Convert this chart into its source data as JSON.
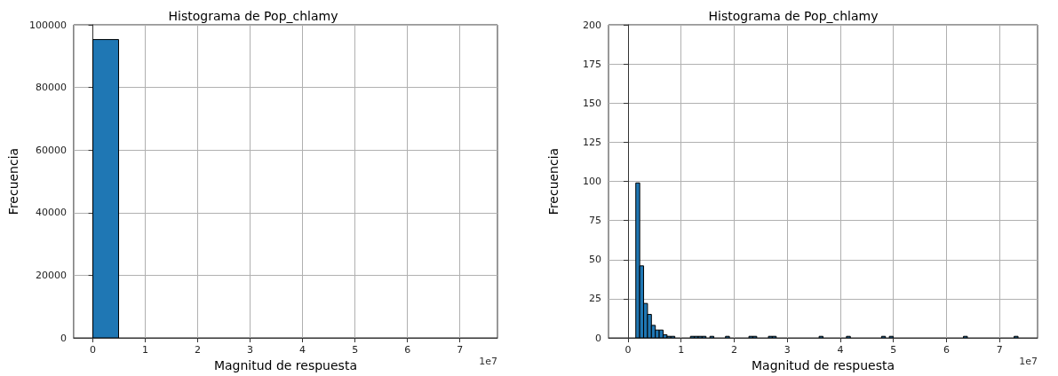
{
  "chart_data": [
    {
      "type": "histogram",
      "title": "Histograma de Pop_chlamy",
      "xlabel": "Magnitud de respuesta",
      "ylabel": "Frecuencia",
      "color": "#1f77b4",
      "bins": [
        0,
        0.49,
        0.98,
        1.47,
        1.96,
        2.45,
        2.94,
        3.43,
        3.92,
        4.41,
        4.9,
        5.39,
        5.88,
        6.37,
        6.86,
        7.35
      ],
      "values": [
        95300,
        0,
        0,
        0,
        0,
        0,
        0,
        0,
        0,
        0,
        0,
        0,
        0,
        0,
        0
      ],
      "xlim": [
        -0.3675,
        7.7175
      ],
      "xticks": [
        0,
        1,
        2,
        3,
        4,
        5,
        6,
        7
      ],
      "ylim": [
        0,
        100000
      ],
      "yticks": [
        0,
        20000,
        40000,
        60000,
        80000,
        100000
      ],
      "grid": true,
      "annotations": [
        "1e7"
      ]
    },
    {
      "type": "histogram",
      "title": "Histograma de Pop_chlamy",
      "xlabel": "Magnitud de respuesta",
      "ylabel": "Frecuencia",
      "color": "#1f77b4",
      "bins": [
        0,
        0.0735,
        0.147,
        0.2205,
        0.294,
        0.3675,
        0.441,
        0.5145,
        0.588,
        0.6615,
        0.735,
        0.8085,
        0.882,
        0.9555,
        1.029,
        1.1025,
        1.176,
        1.2495,
        1.323,
        1.3965,
        1.47,
        1.5435,
        1.617,
        1.6905,
        1.764,
        1.8375,
        1.911,
        1.9845,
        2.058,
        2.1315,
        2.205,
        2.2785,
        2.352,
        2.4255,
        2.499,
        2.5725,
        2.646,
        2.7195,
        2.793,
        2.8665,
        2.94,
        3.0135,
        3.087,
        3.1605,
        3.234,
        3.3075,
        3.381,
        3.4545,
        3.528,
        3.6015,
        3.675,
        3.7485,
        3.822,
        3.8955,
        3.969,
        4.0425,
        4.116,
        4.1895,
        4.263,
        4.3365,
        4.41,
        4.4835,
        4.557,
        4.6305,
        4.704,
        4.7775,
        4.851,
        4.9245,
        4.998,
        5.0715,
        5.145,
        5.2185,
        5.292,
        5.3655,
        5.439,
        5.5125,
        5.586,
        5.6595,
        5.733,
        5.8065,
        5.88,
        5.9535,
        6.027,
        6.1005,
        6.174,
        6.2475,
        6.321,
        6.3945,
        6.468,
        6.5415,
        6.615,
        6.6885,
        6.762,
        6.8355,
        6.909,
        6.9825,
        7.056,
        7.1295,
        7.203,
        7.2765,
        7.35
      ],
      "values": [
        null,
        null,
        99,
        46,
        22,
        15,
        8,
        5,
        5,
        2,
        1,
        1,
        0,
        0,
        0,
        0,
        1,
        1,
        1,
        1,
        0,
        1,
        0,
        0,
        0,
        1,
        0,
        0,
        0,
        0,
        0,
        1,
        1,
        0,
        0,
        0,
        1,
        1,
        0,
        0,
        0,
        0,
        0,
        0,
        0,
        0,
        0,
        0,
        0,
        1,
        0,
        0,
        0,
        0,
        0,
        0,
        1,
        0,
        0,
        0,
        0,
        0,
        0,
        0,
        0,
        1,
        0,
        1,
        0,
        0,
        0,
        0,
        0,
        0,
        0,
        0,
        0,
        0,
        0,
        0,
        0,
        0,
        0,
        0,
        0,
        0,
        1,
        0,
        0,
        0,
        0,
        0,
        0,
        0,
        0,
        0,
        0,
        0,
        0,
        1
      ],
      "xlim": [
        -0.3675,
        7.7175
      ],
      "xticks": [
        0,
        1,
        2,
        3,
        4,
        5,
        6,
        7
      ],
      "ylim": [
        0,
        200
      ],
      "yticks": [
        0,
        25,
        50,
        75,
        100,
        125,
        150,
        175,
        200
      ],
      "grid": true,
      "annotations": [
        "1e7"
      ]
    }
  ]
}
